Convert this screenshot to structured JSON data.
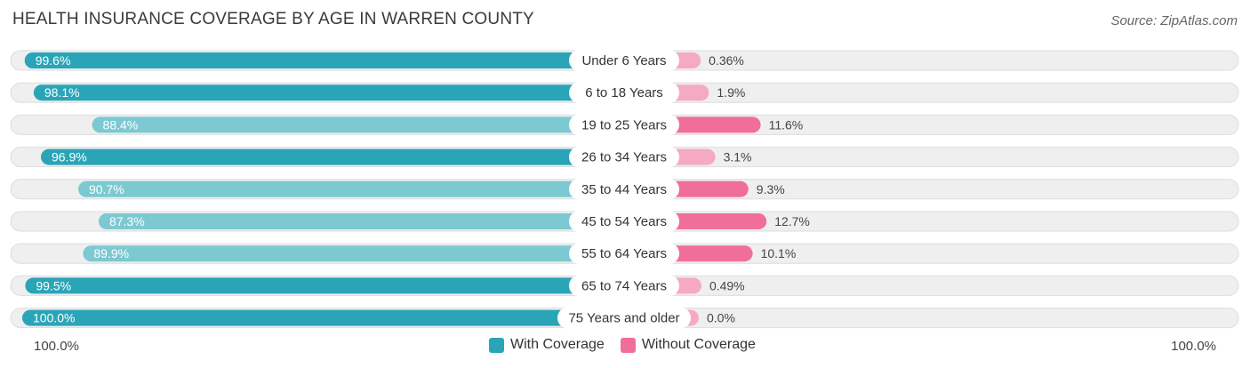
{
  "header": {
    "title": "HEALTH INSURANCE COVERAGE BY AGE IN WARREN COUNTY",
    "source": "Source: ZipAtlas.com"
  },
  "legend": {
    "with": "With Coverage",
    "without": "Without Coverage"
  },
  "axis": {
    "left": "100.0%",
    "right": "100.0%"
  },
  "colors": {
    "with_strong": "#2aa5b8",
    "with_light": "#7cc9d2",
    "without_strong": "#f06f9a",
    "without_light": "#f6a9c3",
    "track": "#efefef"
  },
  "chart_data": {
    "type": "bar",
    "orientation": "horizontal-diverging",
    "title": "HEALTH INSURANCE COVERAGE BY AGE IN WARREN COUNTY",
    "categories": [
      "Under 6 Years",
      "6 to 18 Years",
      "19 to 25 Years",
      "26 to 34 Years",
      "35 to 44 Years",
      "45 to 54 Years",
      "55 to 64 Years",
      "65 to 74 Years",
      "75 Years and older"
    ],
    "series": [
      {
        "name": "With Coverage",
        "values": [
          99.6,
          98.1,
          88.4,
          96.9,
          90.7,
          87.3,
          89.9,
          99.5,
          100.0
        ],
        "labels": [
          "99.6%",
          "98.1%",
          "88.4%",
          "96.9%",
          "90.7%",
          "87.3%",
          "89.9%",
          "99.5%",
          "100.0%"
        ]
      },
      {
        "name": "Without Coverage",
        "values": [
          0.36,
          1.9,
          11.6,
          3.1,
          9.3,
          12.7,
          10.1,
          0.49,
          0.0
        ],
        "labels": [
          "0.36%",
          "1.9%",
          "11.6%",
          "3.1%",
          "9.3%",
          "12.7%",
          "10.1%",
          "0.49%",
          "0.0%"
        ]
      }
    ],
    "xlim": [
      0,
      100
    ],
    "legend_position": "bottom-center"
  }
}
